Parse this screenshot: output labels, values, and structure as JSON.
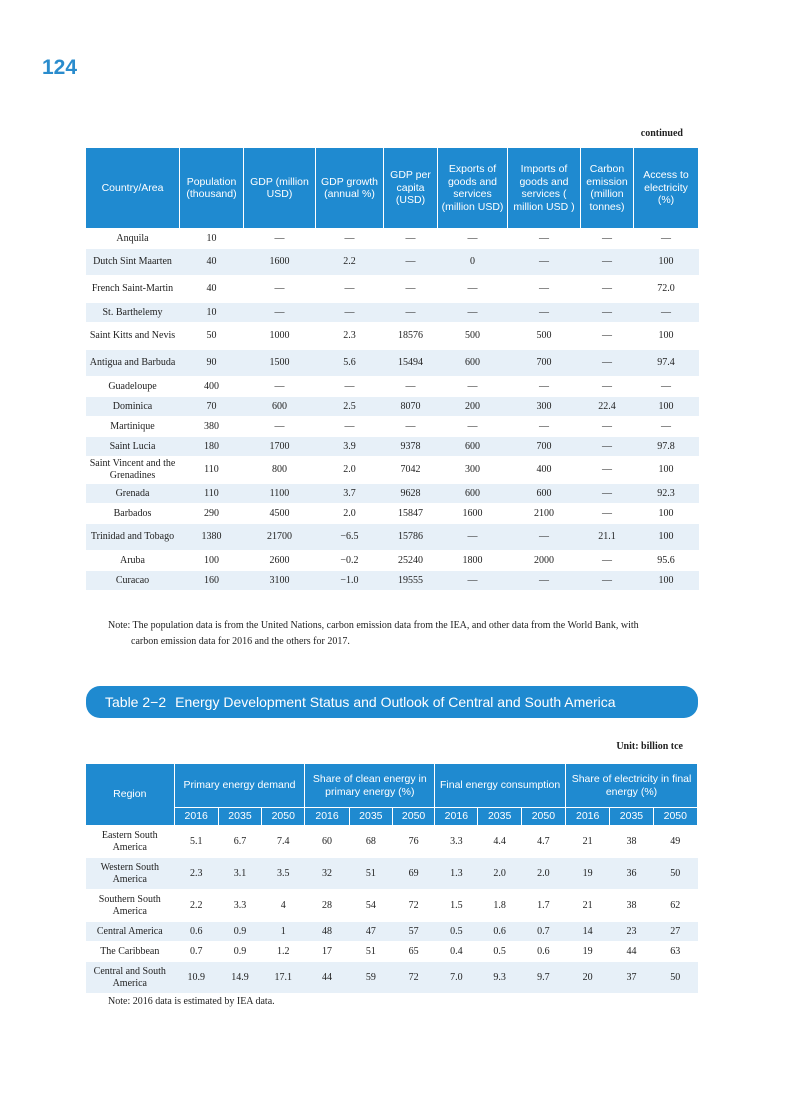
{
  "page_number": "124",
  "continued": "continued",
  "table1": {
    "headers": {
      "country": "Country/Area",
      "population": "Population (thousand)",
      "gdp": "GDP (million USD)",
      "gdp_growth": "GDP growth (annual %)",
      "gdp_per_capita": "GDP per capita (USD)",
      "exports": "Exports of goods and services (million USD)",
      "imports": "Imports of goods and services ( million USD )",
      "carbon": "Carbon emission (million tonnes)",
      "access": "Access to electricity (%)"
    },
    "rows": [
      [
        "Anquila",
        "10",
        "—",
        "—",
        "—",
        "—",
        "—",
        "—",
        "—"
      ],
      [
        "Dutch Sint Maarten",
        "40",
        "1600",
        "2.2",
        "—",
        "0",
        "—",
        "—",
        "100"
      ],
      [
        "French Saint-Martin",
        "40",
        "—",
        "—",
        "—",
        "—",
        "—",
        "—",
        "72.0"
      ],
      [
        "St. Barthelemy",
        "10",
        "—",
        "—",
        "—",
        "—",
        "—",
        "—",
        "—"
      ],
      [
        "Saint Kitts and Nevis",
        "50",
        "1000",
        "2.3",
        "18576",
        "500",
        "500",
        "—",
        "100"
      ],
      [
        "Antigua and Barbuda",
        "90",
        "1500",
        "5.6",
        "15494",
        "600",
        "700",
        "—",
        "97.4"
      ],
      [
        "Guadeloupe",
        "400",
        "—",
        "—",
        "—",
        "—",
        "—",
        "—",
        "—"
      ],
      [
        "Dominica",
        "70",
        "600",
        "2.5",
        "8070",
        "200",
        "300",
        "22.4",
        "100"
      ],
      [
        "Martinique",
        "380",
        "—",
        "—",
        "—",
        "—",
        "—",
        "—",
        "—"
      ],
      [
        "Saint Lucia",
        "180",
        "1700",
        "3.9",
        "9378",
        "600",
        "700",
        "—",
        "97.8"
      ],
      [
        "Saint Vincent and the Grenadines",
        "110",
        "800",
        "2.0",
        "7042",
        "300",
        "400",
        "—",
        "100"
      ],
      [
        "Grenada",
        "110",
        "1100",
        "3.7",
        "9628",
        "600",
        "600",
        "—",
        "92.3"
      ],
      [
        "Barbados",
        "290",
        "4500",
        "2.0",
        "15847",
        "1600",
        "2100",
        "—",
        "100"
      ],
      [
        "Trinidad and Tobago",
        "1380",
        "21700",
        "−6.5",
        "15786",
        "—",
        "—",
        "21.1",
        "100"
      ],
      [
        "Aruba",
        "100",
        "2600",
        "−0.2",
        "25240",
        "1800",
        "2000",
        "—",
        "95.6"
      ],
      [
        "Curacao",
        "160",
        "3100",
        "−1.0",
        "19555",
        "—",
        "—",
        "—",
        "100"
      ]
    ],
    "note_line1": "Note: The population data is from the United Nations, carbon emission data from the IEA, and other data from the World Bank, with",
    "note_line2": "carbon emission data for 2016 and the others for 2017."
  },
  "table2": {
    "number": "Table 2−2",
    "title": "Energy Development Status and Outlook of Central and South America",
    "unit": "Unit: billion tce",
    "headers": {
      "region": "Region",
      "primary": "Primary energy demand",
      "clean": "Share of clean energy in primary energy (%)",
      "final": "Final energy consumption",
      "electricity": "Share of electricity in final energy (%)",
      "years": [
        "2016",
        "2035",
        "2050"
      ]
    },
    "rows": [
      [
        "Eastern South America",
        "5.1",
        "6.7",
        "7.4",
        "60",
        "68",
        "76",
        "3.3",
        "4.4",
        "4.7",
        "21",
        "38",
        "49"
      ],
      [
        "Western South America",
        "2.3",
        "3.1",
        "3.5",
        "32",
        "51",
        "69",
        "1.3",
        "2.0",
        "2.0",
        "19",
        "36",
        "50"
      ],
      [
        "Southern South America",
        "2.2",
        "3.3",
        "4",
        "28",
        "54",
        "72",
        "1.5",
        "1.8",
        "1.7",
        "21",
        "38",
        "62"
      ],
      [
        "Central America",
        "0.6",
        "0.9",
        "1",
        "48",
        "47",
        "57",
        "0.5",
        "0.6",
        "0.7",
        "14",
        "23",
        "27"
      ],
      [
        "The Caribbean",
        "0.7",
        "0.9",
        "1.2",
        "17",
        "51",
        "65",
        "0.4",
        "0.5",
        "0.6",
        "19",
        "44",
        "63"
      ],
      [
        "Central and South America",
        "10.9",
        "14.9",
        "17.1",
        "44",
        "59",
        "72",
        "7.0",
        "9.3",
        "9.7",
        "20",
        "37",
        "50"
      ]
    ],
    "note": "Note: 2016 data is estimated by IEA data."
  }
}
